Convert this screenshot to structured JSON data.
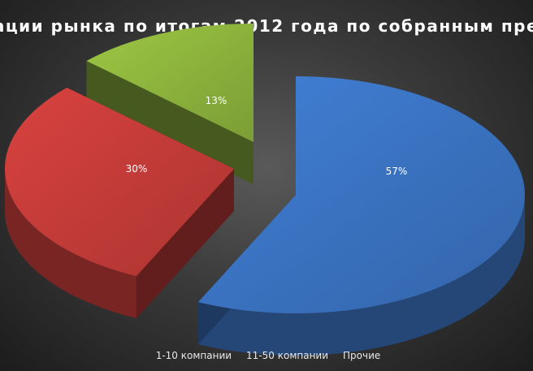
{
  "chart_data": {
    "type": "pie",
    "title": "рации рынка по итогам 2012 года по собранным прем",
    "series": [
      {
        "name": "1-10 компании",
        "value": 57,
        "label": "57%",
        "color": "#3a72c0"
      },
      {
        "name": "11-50 компании",
        "value": 30,
        "label": "30%",
        "color": "#c23b38"
      },
      {
        "name": "Прочие",
        "value": 13,
        "label": "13%",
        "color": "#8cb23c"
      }
    ],
    "legend_position": "bottom",
    "exploded": true,
    "style": "3d"
  }
}
